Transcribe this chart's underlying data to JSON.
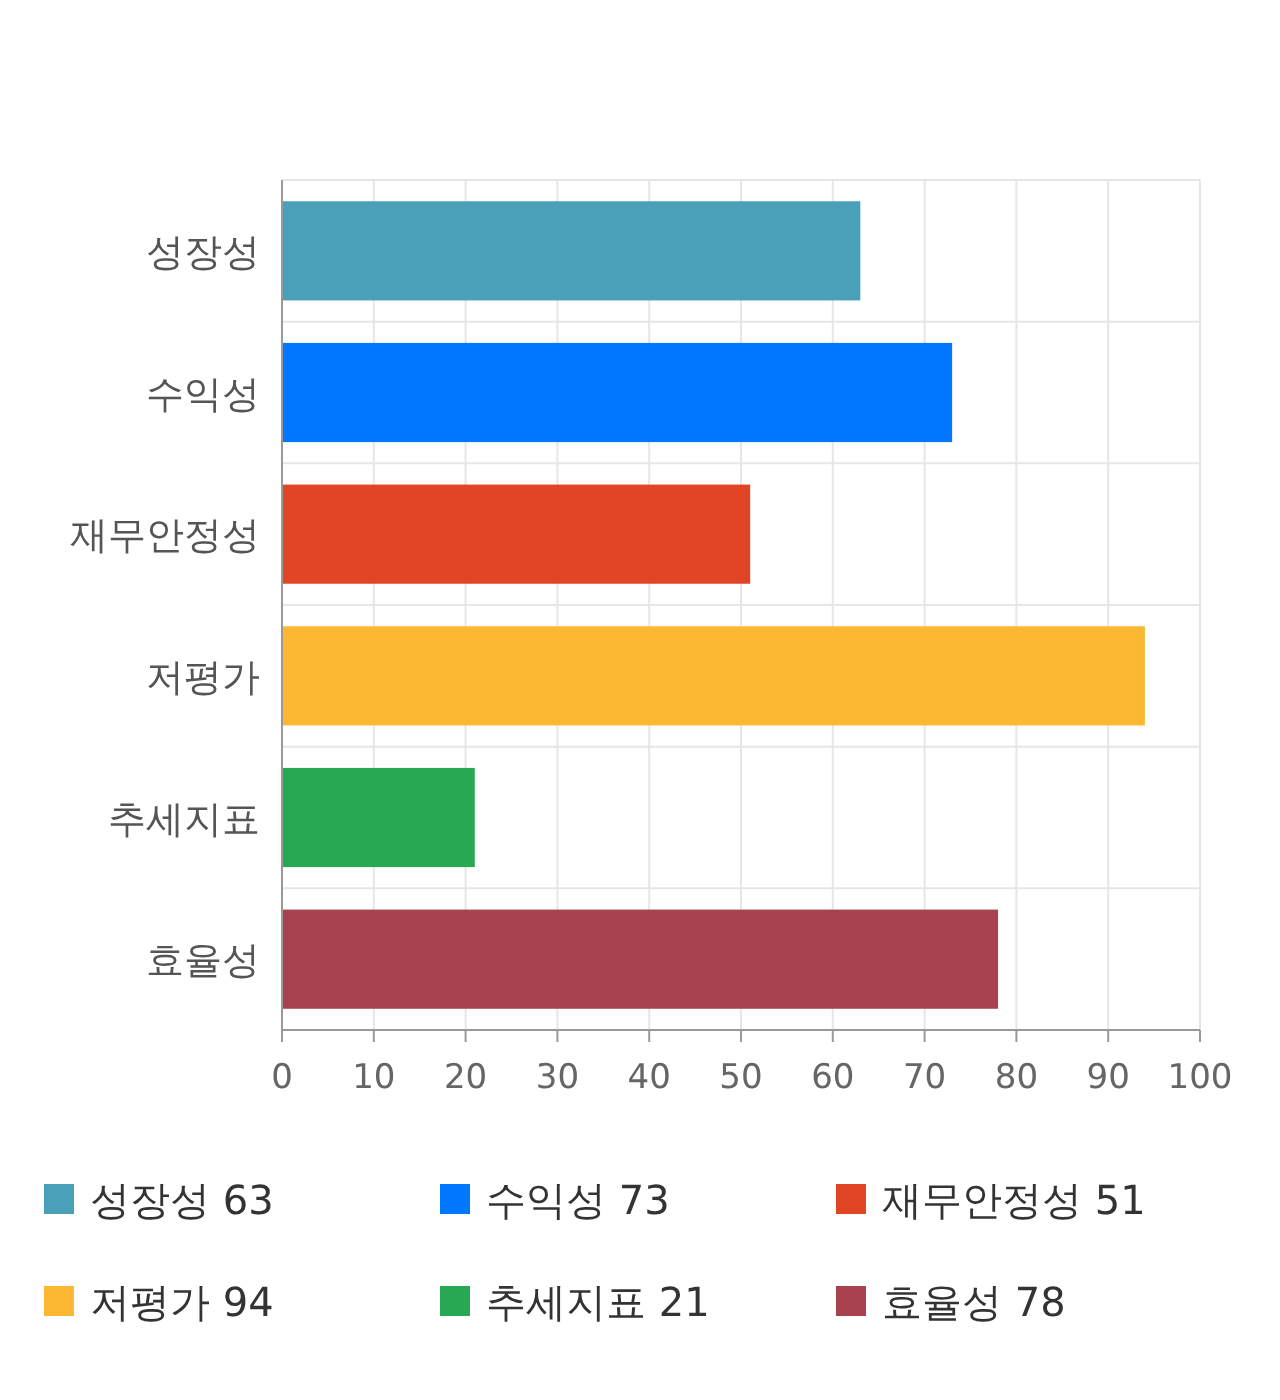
{
  "chart_data": {
    "type": "bar",
    "orientation": "horizontal",
    "stacked": true,
    "categories": [
      "성장성",
      "수익성",
      "재무안정성",
      "저평가",
      "추세지표",
      "효율성"
    ],
    "series": [
      {
        "name": "성장성 63",
        "color": "#4aa0b8",
        "values": [
          63,
          null,
          null,
          null,
          null,
          null
        ]
      },
      {
        "name": "수익성 73",
        "color": "#0077ff",
        "values": [
          null,
          73,
          null,
          null,
          null,
          null
        ]
      },
      {
        "name": "재무안정성 51",
        "color": "#e24426",
        "values": [
          null,
          null,
          51,
          null,
          null,
          null
        ]
      },
      {
        "name": "저평가 94",
        "color": "#fdb833",
        "values": [
          null,
          null,
          null,
          94,
          null,
          null
        ]
      },
      {
        "name": "추세지표 21",
        "color": "#29a854",
        "values": [
          null,
          null,
          null,
          null,
          21,
          null
        ]
      },
      {
        "name": "효율성 78",
        "color": "#a8424f",
        "values": [
          null,
          null,
          null,
          null,
          null,
          78
        ]
      }
    ],
    "xlim": [
      0,
      100
    ],
    "xticks": [
      0,
      10,
      20,
      30,
      40,
      50,
      60,
      70,
      80,
      90,
      100
    ],
    "grid": true,
    "legend": "bottom"
  }
}
